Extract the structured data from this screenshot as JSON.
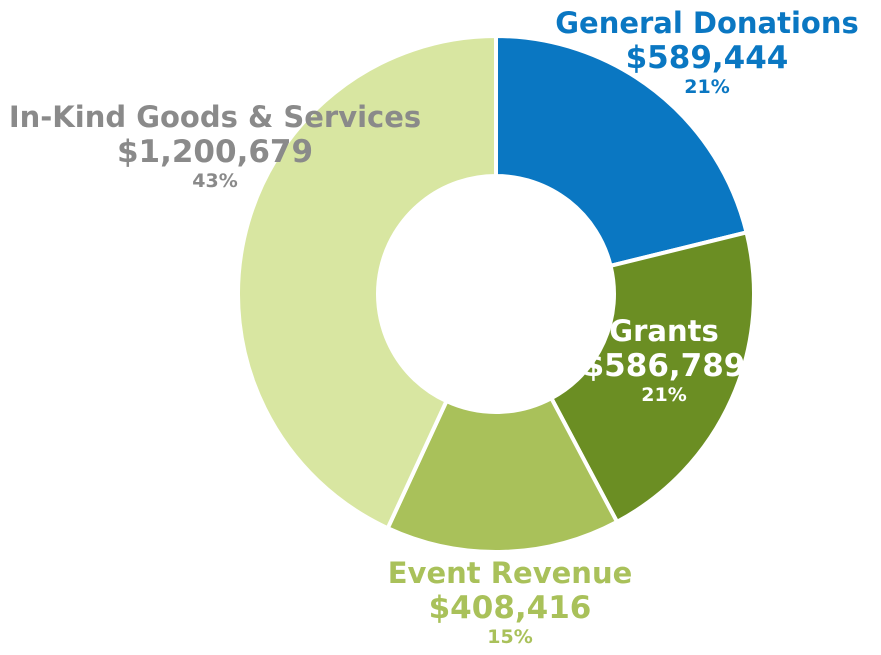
{
  "chart_data": {
    "type": "pie",
    "variant": "donut",
    "slices": [
      {
        "label": "General Donations",
        "value": 589444,
        "value_text": "$589,444",
        "percent_text": "21%",
        "color": "#0a77c2",
        "label_color": "#0a77c2"
      },
      {
        "label": "Grants",
        "value": 586789,
        "value_text": "$586,789",
        "percent_text": "21%",
        "color": "#6b8e23",
        "label_color": "#ffffff"
      },
      {
        "label": "Event Revenue",
        "value": 408416,
        "value_text": "$408,416",
        "percent_text": "15%",
        "color": "#a9c15a",
        "label_color": "#a9c15a"
      },
      {
        "label": "In-Kind Goods & Services",
        "value": 1200679,
        "value_text": "$1,200,679",
        "percent_text": "43%",
        "color": "#d8e6a1",
        "label_color": "#8a8a8a"
      }
    ]
  }
}
